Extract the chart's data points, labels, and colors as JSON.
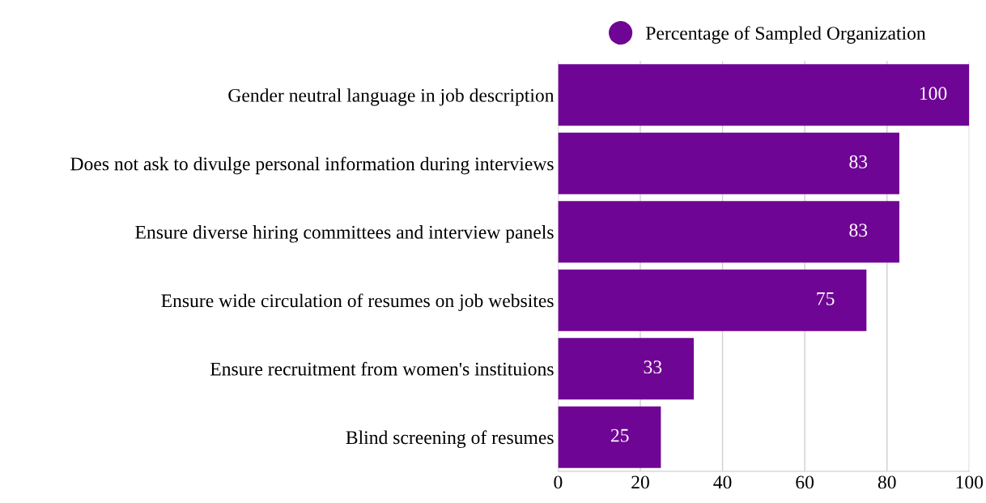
{
  "chart_data": {
    "type": "bar",
    "orientation": "horizontal",
    "categories": [
      "Gender neutral language in job description",
      "Does not ask to divulge personal information during interviews",
      "Ensure diverse hiring committees and interview panels",
      "Ensure wide circulation of resumes on job websites",
      "Ensure recruitment from women's instituions",
      "Blind screening of resumes"
    ],
    "series": [
      {
        "name": "Percentage of Sampled Organization",
        "color": "#6f0594",
        "values": [
          100,
          83,
          83,
          75,
          33,
          25
        ]
      }
    ],
    "xlim": [
      0,
      100
    ],
    "xticks": [
      0,
      20,
      40,
      60,
      80,
      100
    ],
    "grid": "x",
    "legend": "top",
    "data_labels": true
  }
}
